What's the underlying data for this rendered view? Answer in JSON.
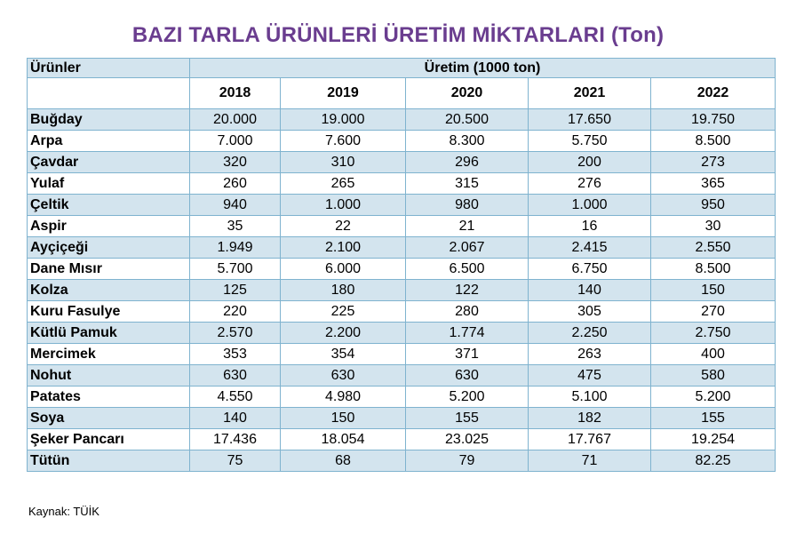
{
  "title": "BAZI TARLA ÜRÜNLERİ ÜRETİM MİKTARLARI (Ton)",
  "table": {
    "row_header": "Ürünler",
    "group_header": "Üretim (1000 ton)",
    "years": [
      "2018",
      "2019",
      "2020",
      "2021",
      "2022"
    ],
    "rows": [
      {
        "name": "Buğday",
        "values": [
          "20.000",
          "19.000",
          "20.500",
          "17.650",
          "19.750"
        ]
      },
      {
        "name": "Arpa",
        "values": [
          "7.000",
          "7.600",
          "8.300",
          "5.750",
          "8.500"
        ]
      },
      {
        "name": "Çavdar",
        "values": [
          "320",
          "310",
          "296",
          "200",
          "273"
        ]
      },
      {
        "name": "Yulaf",
        "values": [
          "260",
          "265",
          "315",
          "276",
          "365"
        ]
      },
      {
        "name": "Çeltik",
        "values": [
          "940",
          "1.000",
          "980",
          "1.000",
          "950"
        ]
      },
      {
        "name": "Aspir",
        "values": [
          "35",
          "22",
          "21",
          "16",
          "30"
        ]
      },
      {
        "name": "Ayçiçeği",
        "values": [
          "1.949",
          "2.100",
          "2.067",
          "2.415",
          "2.550"
        ]
      },
      {
        "name": "Dane Mısır",
        "values": [
          "5.700",
          "6.000",
          "6.500",
          "6.750",
          "8.500"
        ]
      },
      {
        "name": "Kolza",
        "values": [
          "125",
          "180",
          "122",
          "140",
          "150"
        ]
      },
      {
        "name": "Kuru Fasulye",
        "values": [
          "220",
          "225",
          "280",
          "305",
          "270"
        ]
      },
      {
        "name": "Kütlü Pamuk",
        "values": [
          "2.570",
          "2.200",
          "1.774",
          "2.250",
          "2.750"
        ]
      },
      {
        "name": "Mercimek",
        "values": [
          "353",
          "354",
          "371",
          "263",
          "400"
        ]
      },
      {
        "name": "Nohut",
        "values": [
          "630",
          "630",
          "630",
          "475",
          "580"
        ]
      },
      {
        "name": "Patates",
        "values": [
          "4.550",
          "4.980",
          "5.200",
          "5.100",
          "5.200"
        ]
      },
      {
        "name": "Soya",
        "values": [
          "140",
          "150",
          "155",
          "182",
          "155"
        ]
      },
      {
        "name": "Şeker Pancarı",
        "values": [
          "17.436",
          "18.054",
          "23.025",
          "17.767",
          "19.254"
        ]
      },
      {
        "name": "Tütün",
        "values": [
          "75",
          "68",
          "79",
          "71",
          "82.25"
        ]
      }
    ]
  },
  "source": "Kaynak: TÜİK",
  "colors": {
    "title": "#6a3d8f",
    "band": "#d3e4ee",
    "border": "#7fb3cf"
  }
}
